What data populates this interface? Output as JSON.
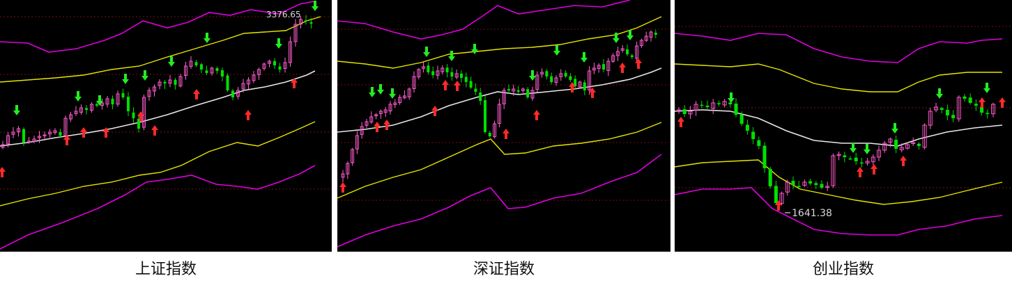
{
  "panels": [
    {
      "caption": "上证指数",
      "annotation": {
        "text": "3376.65",
        "font_size": 12,
        "color": "#d8d8d8"
      },
      "chart_data": {
        "type": "candlestick",
        "title": "上证指数",
        "ylim": [
          0,
          362
        ],
        "colors": {
          "up": "#ff3b3b",
          "down": "#00e000",
          "top_band": "#e000e0",
          "mid_band": "#e6e600",
          "center": "#e8e8e8",
          "grid": "#7a1010",
          "buy_arrow": "#ff2a2a",
          "sell_arrow": "#22ee22"
        }
      }
    },
    {
      "caption": "深证指数",
      "annotation": null,
      "chart_data": {
        "type": "candlestick",
        "title": "深证指数",
        "ylim": [
          0,
          362
        ]
      }
    },
    {
      "caption": "创业指数",
      "annotation": {
        "text": "1641.38",
        "font_size": 14,
        "color": "#d8d8d8"
      },
      "chart_data": {
        "type": "candlestick",
        "title": "创业指数",
        "ylim": [
          0,
          362
        ]
      }
    }
  ]
}
